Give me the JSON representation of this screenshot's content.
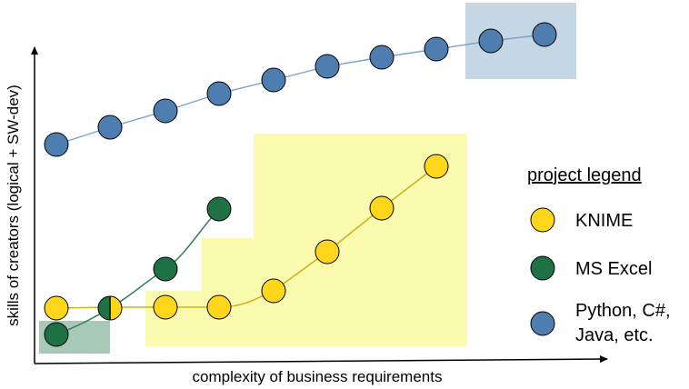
{
  "axes": {
    "x_label": "complexity of business requirements",
    "y_label": "skills of creators (logical + SW-dev)"
  },
  "legend": {
    "title": "project legend",
    "items": [
      {
        "key": "knime",
        "label": "KNIME",
        "color": "#FFD619"
      },
      {
        "key": "excel",
        "label": "MS Excel",
        "color": "#1E7145"
      },
      {
        "key": "python",
        "label_lines": [
          "Python, C#,",
          "Java, etc."
        ],
        "color": "#4E7DB0"
      }
    ]
  },
  "colors": {
    "python_line": "#7BA3C8",
    "excel_line": "#3B7F6A",
    "knime_line": "#C9B41A",
    "python_highlight": "#C5D6E5",
    "excel_highlight": "#A8C8B8",
    "knime_highlight": "#FBFBB0",
    "node_outline": "#000000"
  }
}
